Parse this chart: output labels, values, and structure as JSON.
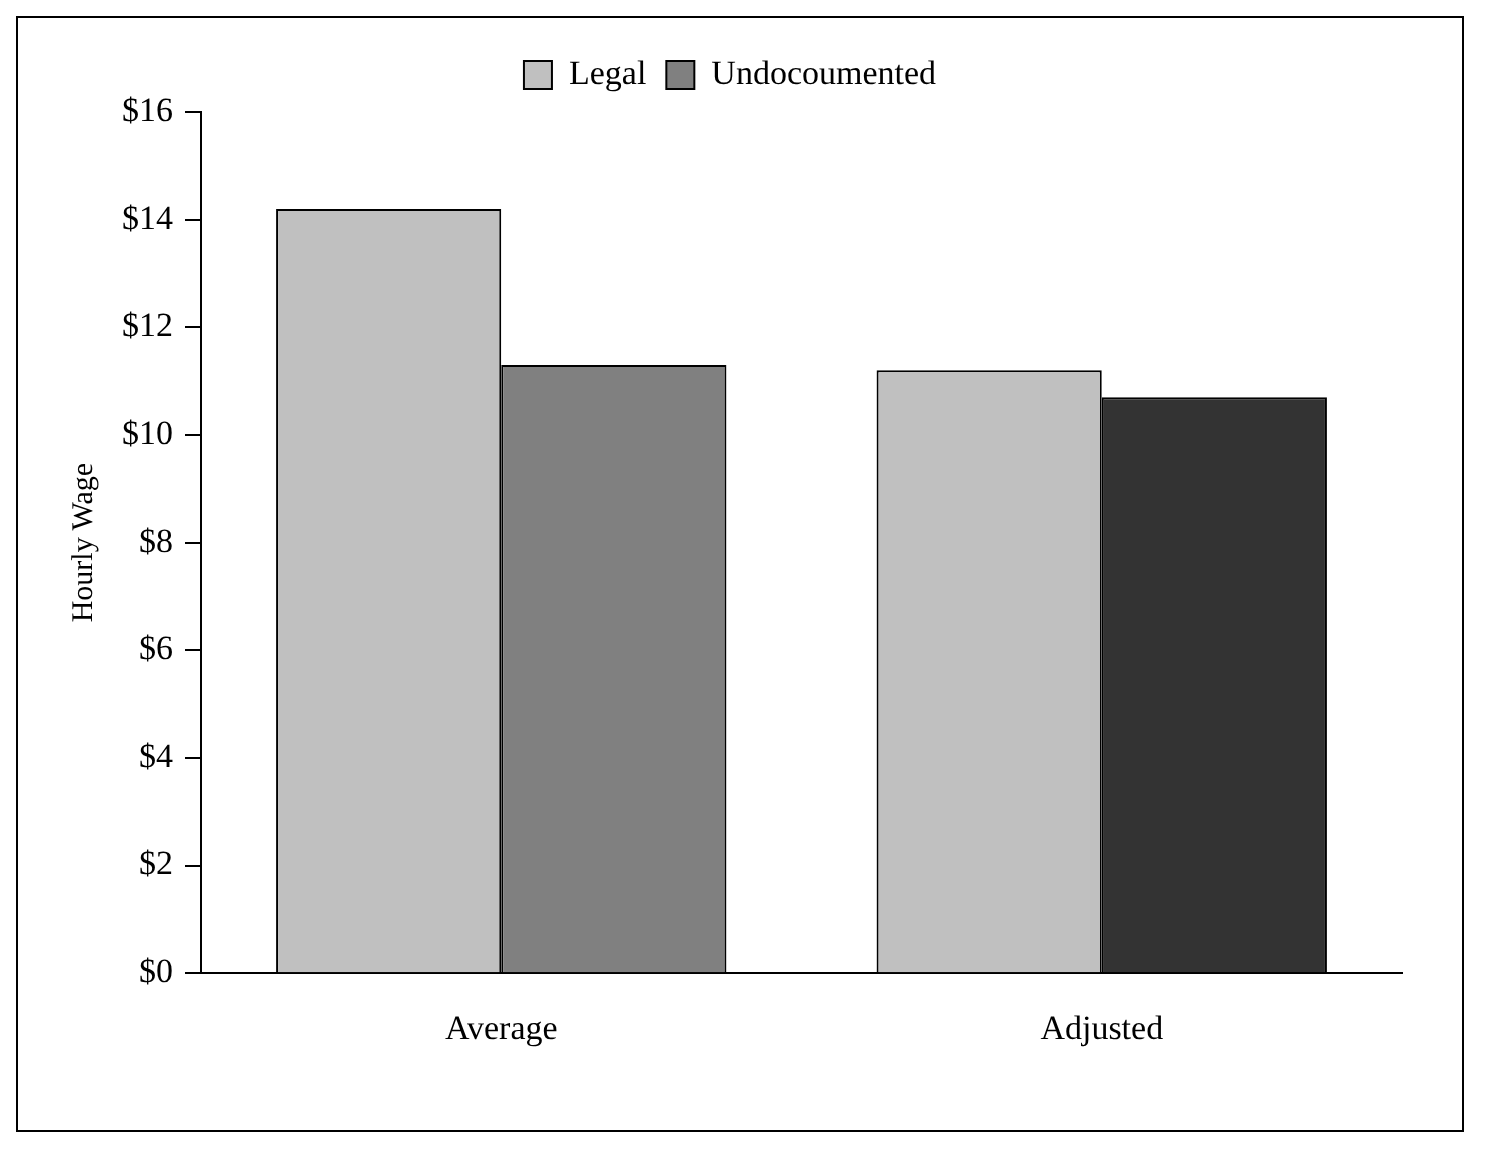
{
  "chart_data": {
    "type": "bar",
    "ylabel": "Hourly Wage",
    "categories": [
      "Average",
      "Adjusted"
    ],
    "series": [
      {
        "name": "Legal",
        "color": "#c0c0c0",
        "values": [
          14.2,
          11.2
        ]
      },
      {
        "name": "Undocoumented",
        "color": "#808080",
        "colors": [
          "#808080",
          "#333333"
        ],
        "values": [
          11.3,
          10.7
        ]
      }
    ],
    "ylim": [
      0,
      16
    ],
    "yticks": [
      {
        "value": 0,
        "label": "$0"
      },
      {
        "value": 2,
        "label": "$2"
      },
      {
        "value": 4,
        "label": "$4"
      },
      {
        "value": 6,
        "label": "$6"
      },
      {
        "value": 8,
        "label": "$8"
      },
      {
        "value": 10,
        "label": "$10"
      },
      {
        "value": 12,
        "label": "$12"
      },
      {
        "value": 14,
        "label": "$14"
      },
      {
        "value": 16,
        "label": "$16"
      }
    ],
    "grid": false,
    "legend": "top"
  }
}
